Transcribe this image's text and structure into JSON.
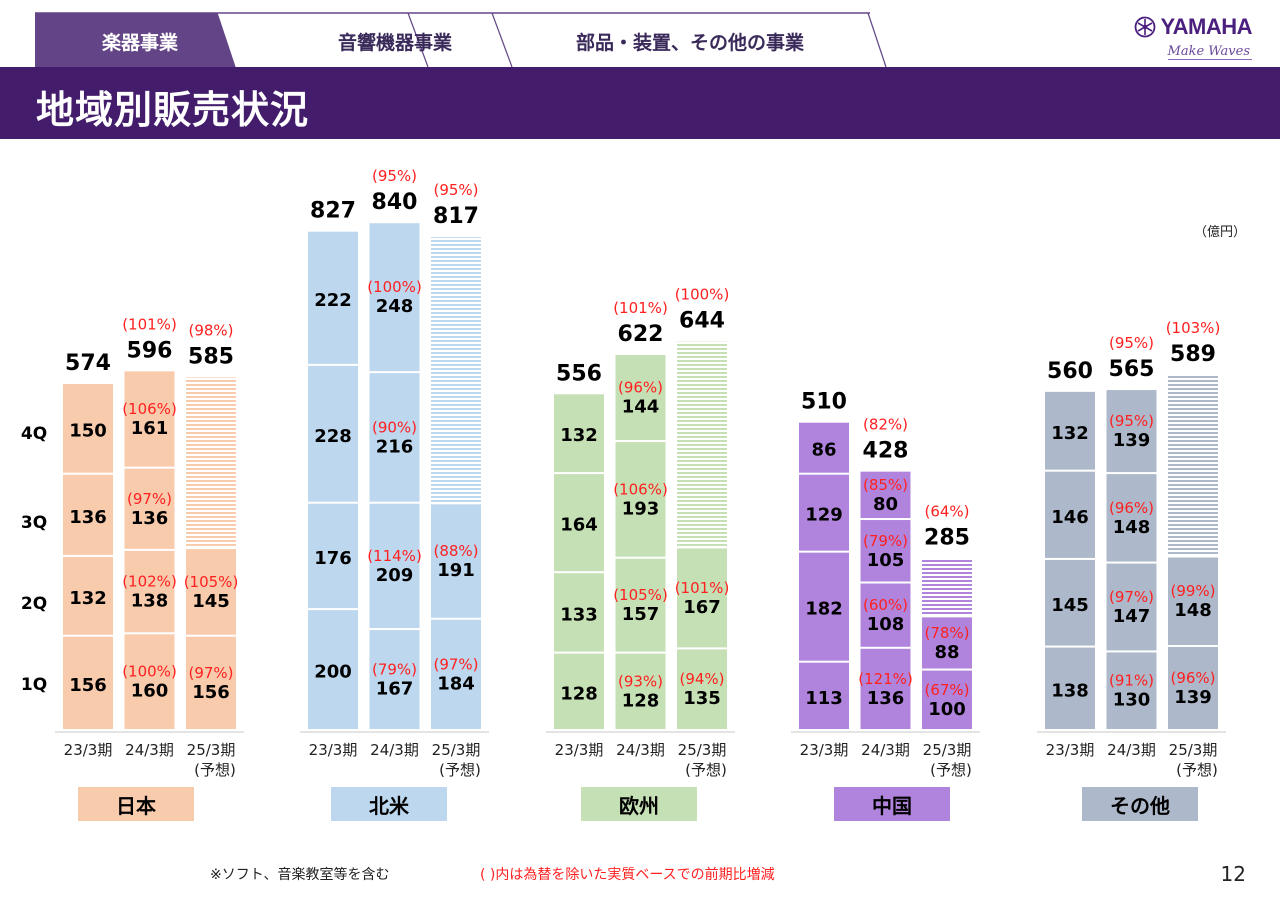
{
  "header": {
    "tabs": [
      {
        "label": "楽器事業",
        "active": true
      },
      {
        "label": "音響機器事業",
        "active": false
      },
      {
        "label": "部品・装置、その他の事業",
        "active": false
      }
    ],
    "logo": {
      "brand": "YAMAHA",
      "tagline": "Make Waves"
    },
    "title": "地域別販売状況"
  },
  "unit_label": "（億円）",
  "footer": {
    "note": "※ソフト、音楽教室等を含む",
    "legend_note": "( )内は為替を除いた実質ベースでの前期比増減",
    "page_number": "12"
  },
  "colors": {
    "title_bar": "#431d6b",
    "active_tab": "#634587",
    "pct_text": "#ff2020",
    "japan": "#f8cbad",
    "north_america": "#bdd7ee",
    "europe": "#c5e0b4",
    "china": "#b084dc",
    "other": "#adb9ca"
  },
  "chart_data": {
    "type": "bar",
    "stacked": true,
    "title": "地域別販売状況",
    "ylabel": "億円",
    "quarters": [
      "1Q",
      "2Q",
      "3Q",
      "4Q"
    ],
    "periods": [
      "23/3期",
      "24/3期",
      "25/3期"
    ],
    "forecast_sublabel": "(予想)",
    "regions": [
      {
        "name": "日本",
        "color": "#f8cbad",
        "bars": [
          {
            "period": "23/3期",
            "total": 574,
            "total_pct": null,
            "q": [
              156,
              132,
              136,
              150
            ],
            "q_pct": [
              null,
              null,
              null,
              null
            ]
          },
          {
            "period": "24/3期",
            "total": 596,
            "total_pct": "(101%)",
            "q": [
              160,
              138,
              136,
              161
            ],
            "q_pct": [
              "(100%)",
              "(102%)",
              "(97%)",
              "(106%)"
            ]
          },
          {
            "period": "25/3期",
            "total": 585,
            "total_pct": "(98%)",
            "q": [
              156,
              145
            ],
            "q_pct": [
              "(97%)",
              "(105%)"
            ],
            "forecast_rest": 284
          }
        ]
      },
      {
        "name": "北米",
        "color": "#bdd7ee",
        "bars": [
          {
            "period": "23/3期",
            "total": 827,
            "total_pct": null,
            "q": [
              200,
              176,
              228,
              222
            ],
            "q_pct": [
              null,
              null,
              null,
              null
            ]
          },
          {
            "period": "24/3期",
            "total": 840,
            "total_pct": "(95%)",
            "q": [
              167,
              209,
              216,
              248
            ],
            "q_pct": [
              "(79%)",
              "(114%)",
              "(90%)",
              "(100%)"
            ]
          },
          {
            "period": "25/3期",
            "total": 817,
            "total_pct": "(95%)",
            "q": [
              184,
              191
            ],
            "q_pct": [
              "(97%)",
              "(88%)"
            ],
            "forecast_rest": 442
          }
        ]
      },
      {
        "name": "欧州",
        "color": "#c5e0b4",
        "bars": [
          {
            "period": "23/3期",
            "total": 556,
            "total_pct": null,
            "q": [
              128,
              133,
              164,
              132
            ],
            "q_pct": [
              null,
              null,
              null,
              null
            ]
          },
          {
            "period": "24/3期",
            "total": 622,
            "total_pct": "(101%)",
            "q": [
              128,
              157,
              193,
              144
            ],
            "q_pct": [
              "(93%)",
              "(105%)",
              "(106%)",
              "(96%)"
            ]
          },
          {
            "period": "25/3期",
            "total": 644,
            "total_pct": "(100%)",
            "q": [
              135,
              167
            ],
            "q_pct": [
              "(94%)",
              "(101%)"
            ],
            "forecast_rest": 342
          }
        ]
      },
      {
        "name": "中国",
        "color": "#b084dc",
        "bars": [
          {
            "period": "23/3期",
            "total": 510,
            "total_pct": null,
            "q": [
              113,
              182,
              129,
              86
            ],
            "q_pct": [
              null,
              null,
              null,
              null
            ]
          },
          {
            "period": "24/3期",
            "total": 428,
            "total_pct": "(82%)",
            "q": [
              136,
              108,
              105,
              80
            ],
            "q_pct": [
              "(121%)",
              "(60%)",
              "(79%)",
              "(85%)"
            ]
          },
          {
            "period": "25/3期",
            "total": 285,
            "total_pct": "(64%)",
            "q": [
              100,
              88
            ],
            "q_pct": [
              "(67%)",
              "(78%)"
            ],
            "forecast_rest": 97
          }
        ]
      },
      {
        "name": "その他",
        "color": "#adb9ca",
        "bars": [
          {
            "period": "23/3期",
            "total": 560,
            "total_pct": null,
            "q": [
              138,
              145,
              146,
              132
            ],
            "q_pct": [
              null,
              null,
              null,
              null
            ]
          },
          {
            "period": "24/3期",
            "total": 565,
            "total_pct": "(95%)",
            "q": [
              130,
              147,
              148,
              139
            ],
            "q_pct": [
              "(91%)",
              "(97%)",
              "(96%)",
              "(95%)"
            ]
          },
          {
            "period": "25/3期",
            "total": 589,
            "total_pct": "(103%)",
            "q": [
              139,
              148
            ],
            "q_pct": [
              "(96%)",
              "(99%)"
            ],
            "forecast_rest": 302
          }
        ]
      }
    ]
  }
}
